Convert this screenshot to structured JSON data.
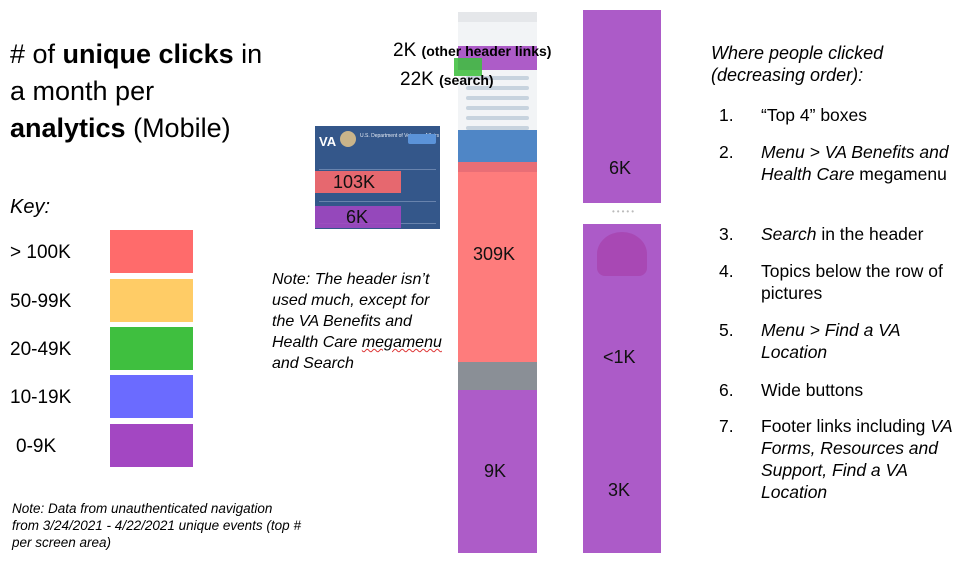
{
  "title": {
    "line1_pre": "# of ",
    "line1_bold": "unique clicks",
    "line1_post": " in",
    "line2": "a month per",
    "line3_bold": "analytics",
    "line3_post": " (Mobile)"
  },
  "key": {
    "heading": "Key:",
    "rows": [
      {
        "label": "> 100K",
        "color": "#ff6b6b"
      },
      {
        "label": "50-99K",
        "color": "#ffcc66"
      },
      {
        "label": "20-49K",
        "color": "#3fbf3f"
      },
      {
        "label": "10-19K",
        "color": "#6b6bff"
      },
      {
        "label": "0-9K",
        "color": "#a347c2"
      }
    ]
  },
  "notes": {
    "bottom": "Note: Data from unauthenticated navigation from 3/24/2021 - 4/22/2021 unique events (top # per screen area)",
    "mid_pre": "Note: The header isn’t used much, except for the VA Benefits and Health Care ",
    "mid_squiggle": "megamenu",
    "mid_post": " and Search"
  },
  "annotations": {
    "header_links_value": "2K",
    "header_links_label": "(other header links)",
    "search_value": "22K",
    "search_label": "(search)"
  },
  "header_shot": {
    "brand": "VA",
    "dept": "U.S. Department of Veterans Affairs",
    "benefits_menu": "103K",
    "about_menu": "6K"
  },
  "main_shot": {
    "top4_boxes": "309K",
    "below": "9K"
  },
  "right_shot": {
    "upper": "6K",
    "topics": "<1K",
    "footer": "3K"
  },
  "ranking": {
    "heading": "Where people clicked (decreasing order):",
    "items": [
      {
        "num": "1.",
        "plain": "“Top 4” boxes"
      },
      {
        "num": "2.",
        "italic": "Menu > VA Benefits and Health Care",
        "plain": " megamenu"
      },
      {
        "num": "3.",
        "italic": "Search",
        "plain": " in the header"
      },
      {
        "num": "4.",
        "plain": "Topics below the row of pictures"
      },
      {
        "num": "5.",
        "italic": "Menu > Find a VA Location"
      },
      {
        "num": "6.",
        "plain": "Wide buttons"
      },
      {
        "num": "7.",
        "plain": "Footer links including ",
        "italic": "VA Forms, Resources and Support, Find a VA Location"
      }
    ]
  }
}
